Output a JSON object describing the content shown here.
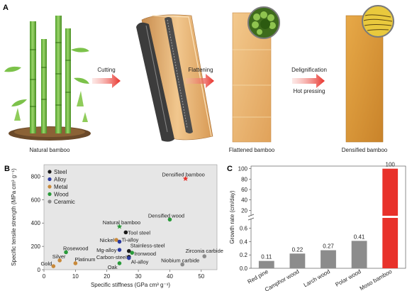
{
  "panel_a": {
    "label": "A",
    "stages": {
      "natural": "Natural bamboo",
      "flattened": "Flattened bamboo",
      "densified": "Densified bamboo"
    },
    "steps": {
      "cutting": "Cutting",
      "flattening": "Flattening",
      "delignification": "Delignification",
      "hot_pressing": "Hot pressing"
    },
    "colors": {
      "arrow": "#e8312a",
      "bamboo_green": "#6fbf3f",
      "flattened": "#e9b46e",
      "densified": "#d9962f"
    }
  },
  "chart_data": [
    {
      "type": "scatter",
      "panel_label": "B",
      "xlabel": "Specific stiffness (GPa cm³ g⁻¹)",
      "ylabel": "Specific tensile strength (MPa cm³ g⁻¹)",
      "xlim": [
        0,
        55
      ],
      "ylim": [
        0,
        900
      ],
      "xticks": [
        "0",
        "10",
        "20",
        "30",
        "40",
        "50"
      ],
      "yticks": [
        "0",
        "200",
        "400",
        "600",
        "800"
      ],
      "legend": [
        {
          "name": "Steel",
          "color": "#1a1a1a"
        },
        {
          "name": "Alloy",
          "color": "#2b3a9e"
        },
        {
          "name": "Metal",
          "color": "#c8893a"
        },
        {
          "name": "Wood",
          "color": "#2a9a3a"
        },
        {
          "name": "Ceramic",
          "color": "#8a8a8a"
        }
      ],
      "points": [
        {
          "label": "Densified bamboo",
          "x": 45,
          "y": 780,
          "category": "star",
          "color": "#e8312a"
        },
        {
          "label": "Densified wood",
          "x": 40,
          "y": 430,
          "category": "Wood",
          "color": "#2a9a3a"
        },
        {
          "label": "Natural bamboo",
          "x": 24,
          "y": 370,
          "category": "star",
          "color": "#2a9a3a"
        },
        {
          "label": "Tool steel",
          "x": 26,
          "y": 320,
          "category": "Steel",
          "color": "#1a1a1a"
        },
        {
          "label": "Nickel",
          "x": 23,
          "y": 255,
          "category": "Metal",
          "color": "#c8893a"
        },
        {
          "label": "Ti-alloy",
          "x": 24,
          "y": 240,
          "category": "Alloy",
          "color": "#2b3a9e"
        },
        {
          "label": "Mg-alloy",
          "x": 24,
          "y": 170,
          "category": "Alloy",
          "color": "#2b3a9e"
        },
        {
          "label": "Stainless-steel",
          "x": 27,
          "y": 160,
          "category": "Steel",
          "color": "#1a1a1a"
        },
        {
          "label": "Ironwood",
          "x": 28,
          "y": 145,
          "category": "Wood",
          "color": "#2a9a3a"
        },
        {
          "label": "Carbon-steel",
          "x": 27,
          "y": 110,
          "category": "Steel",
          "color": "#1a1a1a"
        },
        {
          "label": "Al-alloy",
          "x": 27,
          "y": 100,
          "category": "Alloy",
          "color": "#2b3a9e"
        },
        {
          "label": "Oak",
          "x": 24,
          "y": 55,
          "category": "Wood",
          "color": "#2a9a3a"
        },
        {
          "label": "Rosewood",
          "x": 7,
          "y": 150,
          "category": "Wood",
          "color": "#2a9a3a"
        },
        {
          "label": "Silver",
          "x": 5,
          "y": 80,
          "category": "Metal",
          "color": "#c8893a"
        },
        {
          "label": "Platinum",
          "x": 10,
          "y": 55,
          "category": "Metal",
          "color": "#c8893a"
        },
        {
          "label": "Gold",
          "x": 3,
          "y": 30,
          "category": "Metal",
          "color": "#c8893a"
        },
        {
          "label": "Zirconia carbide",
          "x": 51,
          "y": 115,
          "category": "Ceramic",
          "color": "#8a8a8a"
        },
        {
          "label": "Niobium carbide",
          "x": 44,
          "y": 45,
          "category": "Ceramic",
          "color": "#8a8a8a"
        }
      ]
    },
    {
      "type": "bar",
      "panel_label": "C",
      "ylabel": "Growth rate (cm/day)",
      "categories": [
        "Red pine",
        "Camphor wood",
        "Larch wood",
        "Polar wood",
        "Moso bamboo"
      ],
      "values": [
        0.11,
        0.22,
        0.27,
        0.41,
        100
      ],
      "value_labels": [
        "0.11",
        "0.22",
        "0.27",
        "0.41",
        "100"
      ],
      "colors": [
        "#8c8c8c",
        "#8c8c8c",
        "#8c8c8c",
        "#8c8c8c",
        "#e8312a"
      ],
      "yticks_lower": [
        "0.0",
        "0.2",
        "0.4",
        "0.6"
      ],
      "yticks_upper": [
        "20",
        "40",
        "60",
        "80",
        "100"
      ],
      "broken_axis": true
    }
  ]
}
